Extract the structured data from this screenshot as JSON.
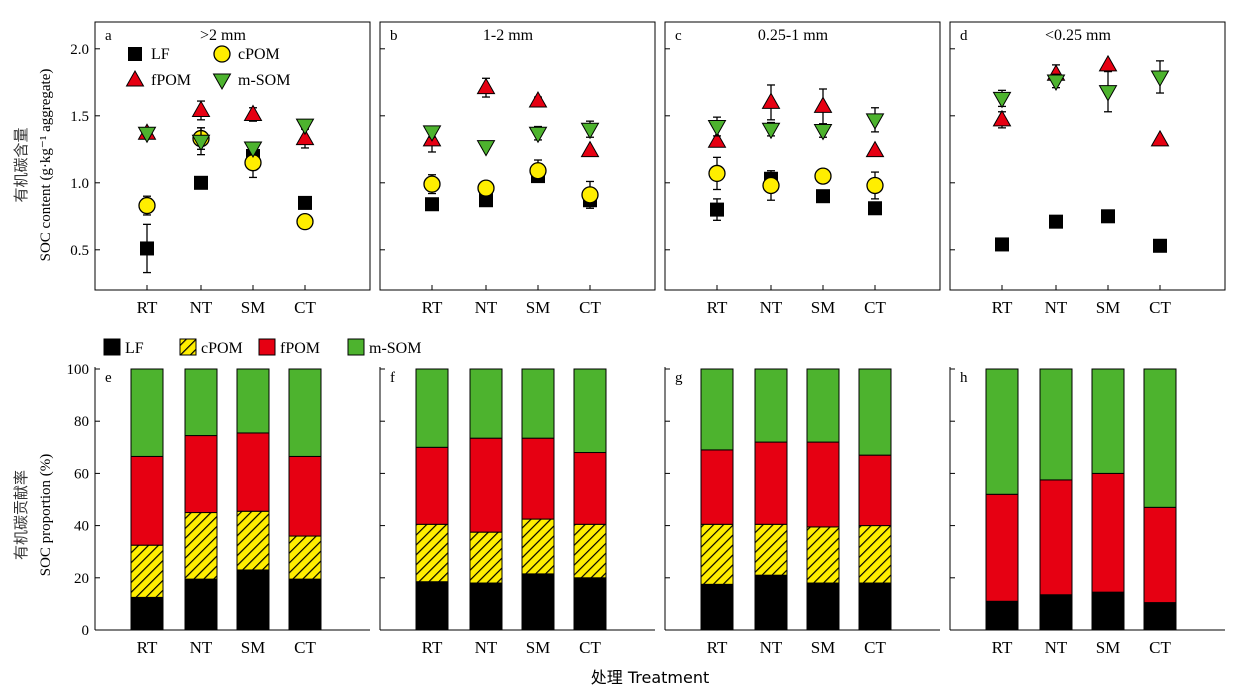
{
  "figure": {
    "x_axis_label": "处理 Treatment",
    "colors": {
      "LF": "#000000",
      "cPOM": "#ffee00",
      "fPOM": "#e60012",
      "mSOM": "#4db32e",
      "hatch": "#000000"
    }
  },
  "chart_data": [
    {
      "type": "scatter",
      "y_label_cn": "有机碳含量",
      "y_label": "SOC content (g·kg⁻¹ aggregate)",
      "ylim": [
        0.2,
        2.2
      ],
      "yticks": [
        "0.5",
        "1.0",
        "1.5",
        "2.0"
      ],
      "categories": [
        "RT",
        "NT",
        "SM",
        "CT"
      ],
      "legend": [
        {
          "name": "LF",
          "marker": "square"
        },
        {
          "name": "cPOM",
          "marker": "circle"
        },
        {
          "name": "fPOM",
          "marker": "triangle-up"
        },
        {
          "name": "m-SOM",
          "marker": "triangle-down"
        }
      ],
      "panels": [
        {
          "label": "a",
          "title": ">2 mm",
          "series": [
            {
              "name": "LF",
              "values": [
                0.51,
                1.0,
                1.2,
                0.85
              ],
              "errors": [
                0.18,
                0.0,
                0.0,
                0.0
              ]
            },
            {
              "name": "cPOM",
              "values": [
                0.83,
                1.33,
                1.15,
                0.71
              ],
              "errors": [
                0.07,
                0.08,
                0.11,
                0.0
              ]
            },
            {
              "name": "fPOM",
              "values": [
                1.37,
                1.54,
                1.51,
                1.33
              ],
              "errors": [
                0.0,
                0.07,
                0.05,
                0.07
              ]
            },
            {
              "name": "m-SOM",
              "values": [
                1.37,
                1.31,
                1.26,
                1.43
              ],
              "errors": [
                0.0,
                0.1,
                0.0,
                0.0
              ]
            }
          ]
        },
        {
          "label": "b",
          "title": "1-2 mm",
          "series": [
            {
              "name": "LF",
              "values": [
                0.84,
                0.87,
                1.05,
                0.87
              ],
              "errors": [
                0.0,
                0.0,
                0.0,
                0.0
              ]
            },
            {
              "name": "cPOM",
              "values": [
                0.99,
                0.96,
                1.09,
                0.91
              ],
              "errors": [
                0.07,
                0.0,
                0.08,
                0.1
              ]
            },
            {
              "name": "fPOM",
              "values": [
                1.32,
                1.71,
                1.61,
                1.24
              ],
              "errors": [
                0.09,
                0.07,
                0.03,
                0.0
              ]
            },
            {
              "name": "m-SOM",
              "values": [
                1.38,
                1.27,
                1.37,
                1.4
              ],
              "errors": [
                0.04,
                0.0,
                0.05,
                0.06
              ]
            }
          ]
        },
        {
          "label": "c",
          "title": "0.25-1 mm",
          "series": [
            {
              "name": "LF",
              "values": [
                0.8,
                1.03,
                0.9,
                0.81
              ],
              "errors": [
                0.08,
                0.0,
                0.0,
                0.0
              ]
            },
            {
              "name": "cPOM",
              "values": [
                1.07,
                0.98,
                1.05,
                0.98
              ],
              "errors": [
                0.12,
                0.11,
                0.0,
                0.1
              ]
            },
            {
              "name": "fPOM",
              "values": [
                1.31,
                1.6,
                1.57,
                1.24
              ],
              "errors": [
                0.0,
                0.13,
                0.13,
                0.0
              ]
            },
            {
              "name": "m-SOM",
              "values": [
                1.42,
                1.4,
                1.39,
                1.47
              ],
              "errors": [
                0.07,
                0.05,
                0.05,
                0.09
              ]
            }
          ]
        },
        {
          "label": "d",
          "title": "<0.25 mm",
          "series": [
            {
              "name": "LF",
              "values": [
                0.54,
                0.71,
                0.75,
                0.53
              ],
              "errors": [
                0.0,
                0.0,
                0.0,
                0.0
              ]
            },
            {
              "name": "cPOM",
              "values": [
                null,
                null,
                null,
                null
              ],
              "errors": [
                0.0,
                0.0,
                0.0,
                0.0
              ]
            },
            {
              "name": "fPOM",
              "values": [
                1.47,
                1.81,
                1.88,
                1.32
              ],
              "errors": [
                0.06,
                0.07,
                0.0,
                0.0
              ]
            },
            {
              "name": "m-SOM",
              "values": [
                1.63,
                1.76,
                1.68,
                1.79
              ],
              "errors": [
                0.06,
                0.05,
                0.15,
                0.12
              ]
            }
          ]
        }
      ]
    },
    {
      "type": "bar",
      "stacked": true,
      "y_label_cn": "有机碳贡献率",
      "y_label": "SOC proportion (%)",
      "ylim": [
        0,
        100
      ],
      "yticks": [
        "0",
        "20",
        "40",
        "60",
        "80",
        "100"
      ],
      "categories": [
        "RT",
        "NT",
        "SM",
        "CT"
      ],
      "legend": [
        {
          "name": "LF"
        },
        {
          "name": "cPOM"
        },
        {
          "name": "fPOM"
        },
        {
          "name": "m-SOM"
        }
      ],
      "panels": [
        {
          "label": "e",
          "series": [
            {
              "name": "LF",
              "values": [
                12.5,
                19.5,
                23,
                19.5
              ]
            },
            {
              "name": "cPOM",
              "values": [
                20,
                25.5,
                22.5,
                16.5
              ]
            },
            {
              "name": "fPOM",
              "values": [
                34,
                29.5,
                30,
                30.5
              ]
            },
            {
              "name": "m-SOM",
              "values": [
                33.5,
                25.5,
                24.5,
                33.5
              ]
            }
          ]
        },
        {
          "label": "f",
          "series": [
            {
              "name": "LF",
              "values": [
                18.5,
                18,
                21.5,
                20
              ]
            },
            {
              "name": "cPOM",
              "values": [
                22,
                19.5,
                21,
                20.5
              ]
            },
            {
              "name": "fPOM",
              "values": [
                29.5,
                36,
                31,
                27.5
              ]
            },
            {
              "name": "m-SOM",
              "values": [
                30,
                26.5,
                26.5,
                32
              ]
            }
          ]
        },
        {
          "label": "g",
          "series": [
            {
              "name": "LF",
              "values": [
                17.5,
                21,
                18,
                18
              ]
            },
            {
              "name": "cPOM",
              "values": [
                23,
                19.5,
                21.5,
                22
              ]
            },
            {
              "name": "fPOM",
              "values": [
                28.5,
                31.5,
                32.5,
                27
              ]
            },
            {
              "name": "m-SOM",
              "values": [
                31,
                28,
                28,
                33
              ]
            }
          ]
        },
        {
          "label": "h",
          "series": [
            {
              "name": "LF",
              "values": [
                11,
                13.5,
                14.5,
                10.5
              ]
            },
            {
              "name": "cPOM",
              "values": [
                0,
                0,
                0,
                0
              ]
            },
            {
              "name": "fPOM",
              "values": [
                41,
                44,
                45.5,
                36.5
              ]
            },
            {
              "name": "m-SOM",
              "values": [
                48,
                42.5,
                40,
                53
              ]
            }
          ]
        }
      ]
    }
  ]
}
